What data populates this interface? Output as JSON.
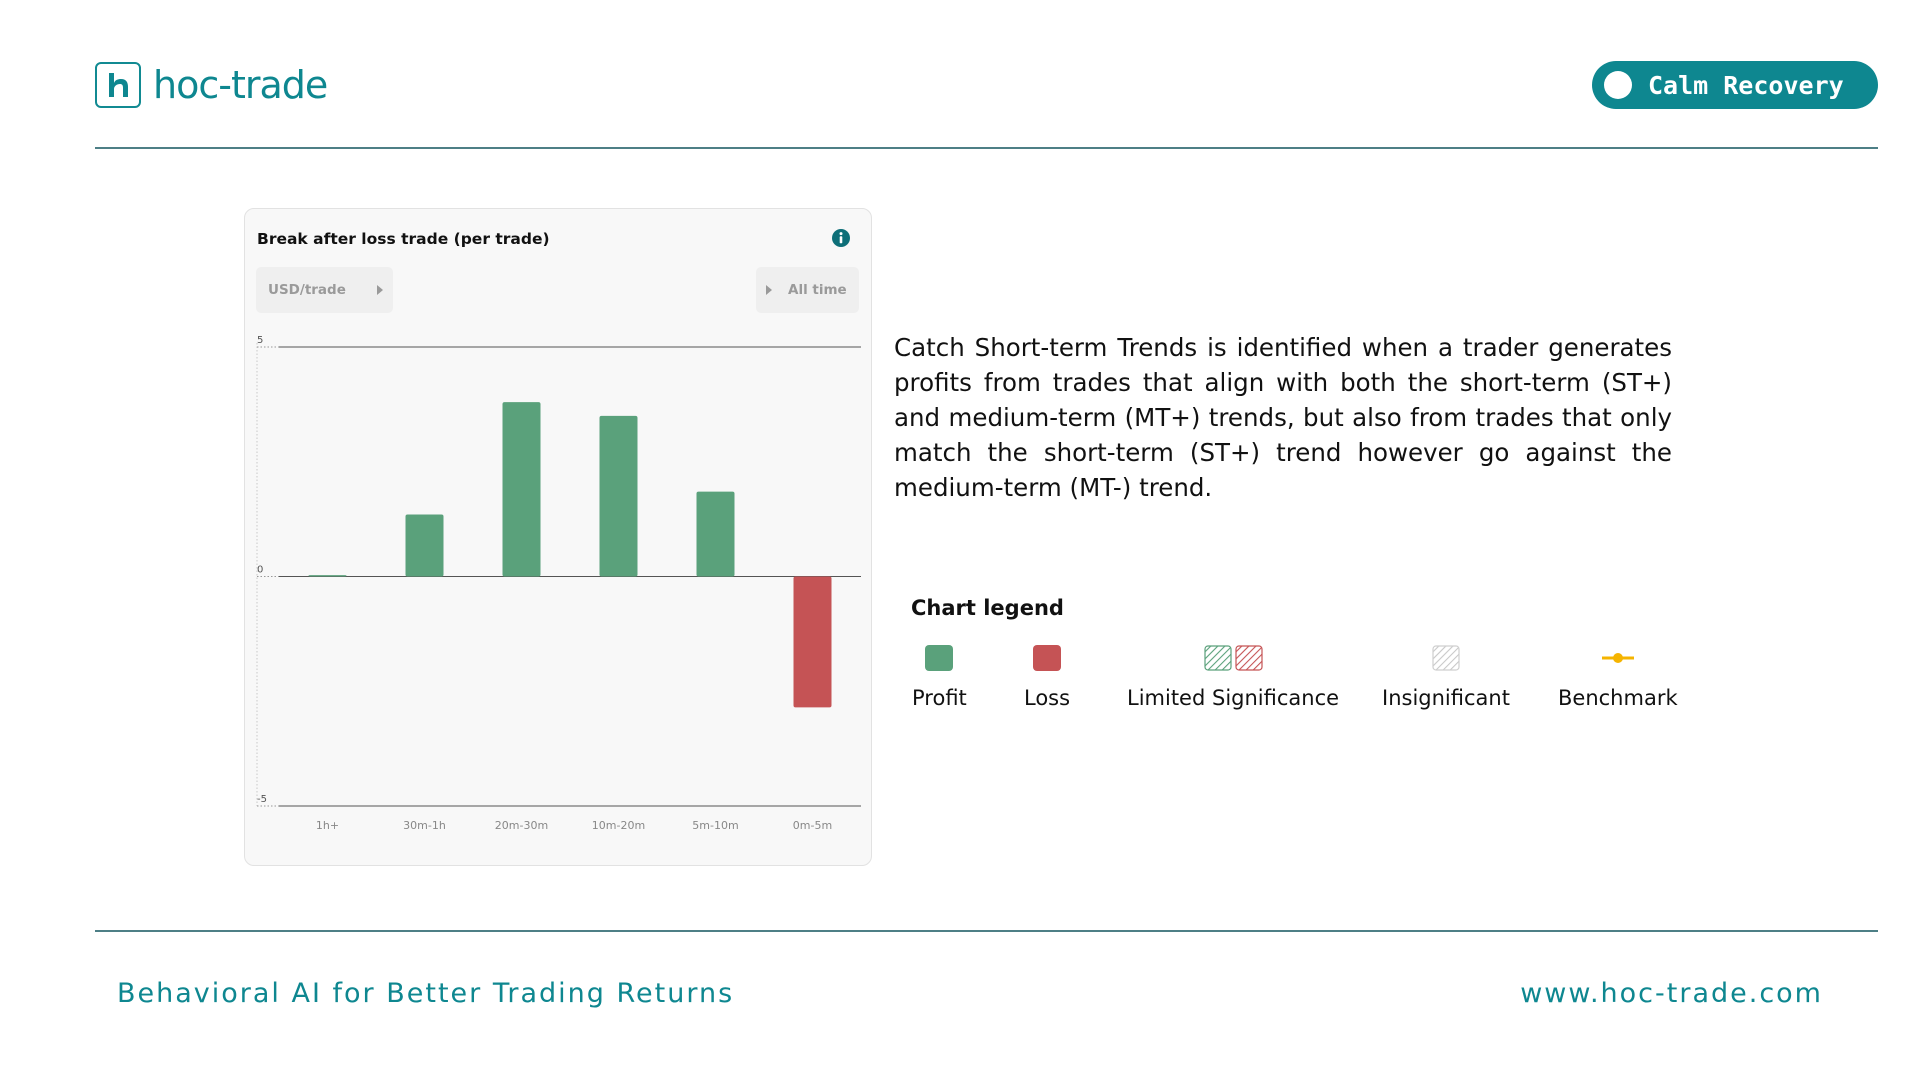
{
  "header": {
    "logo_text": "hoc-trade",
    "badge_label": "Calm Recovery"
  },
  "card": {
    "title": "Break after loss trade (per trade)",
    "unit_label": "USD/trade",
    "range_label": "All time"
  },
  "chart_data": {
    "type": "bar",
    "title": "Break after loss trade (per trade)",
    "categories": [
      "1h+",
      "30m-1h",
      "20m-30m",
      "10m-20m",
      "5m-10m",
      "0m-5m"
    ],
    "values": [
      0.03,
      1.35,
      3.8,
      3.5,
      1.85,
      -2.85
    ],
    "yticks": [
      "5",
      "0",
      "-5"
    ],
    "ylim": [
      -5,
      5
    ],
    "xlabel": "",
    "ylabel": "",
    "colors": {
      "profit": "#5aa17b",
      "loss": "#c55355"
    }
  },
  "description": "Catch Short-term Trends is identified when a trader generates profits from trades that align with both the short-term (ST+) and medium-term (MT+) trends, but also from trades that only match the short-term (ST+) trend however go against the medium-term (MT-) trend.",
  "legend": {
    "title": "Chart legend",
    "items": [
      {
        "label": "Profit",
        "icon": "profit-swatch",
        "color": "#5aa17b"
      },
      {
        "label": "Loss",
        "icon": "loss-swatch",
        "color": "#c55355"
      },
      {
        "label": "Limited Significance",
        "icon": "hatched-swatch"
      },
      {
        "label": "Insignificant",
        "icon": "grey-hatched-swatch"
      },
      {
        "label": "Benchmark",
        "icon": "benchmark-line",
        "color": "#f5b400"
      }
    ]
  },
  "footer": {
    "tagline": "Behavioral AI for Better Trading Returns",
    "website": "www.hoc-trade.com"
  },
  "colors": {
    "brand": "#0e8790",
    "profit": "#5aa17b",
    "loss": "#c55355",
    "benchmark": "#f5b400"
  }
}
